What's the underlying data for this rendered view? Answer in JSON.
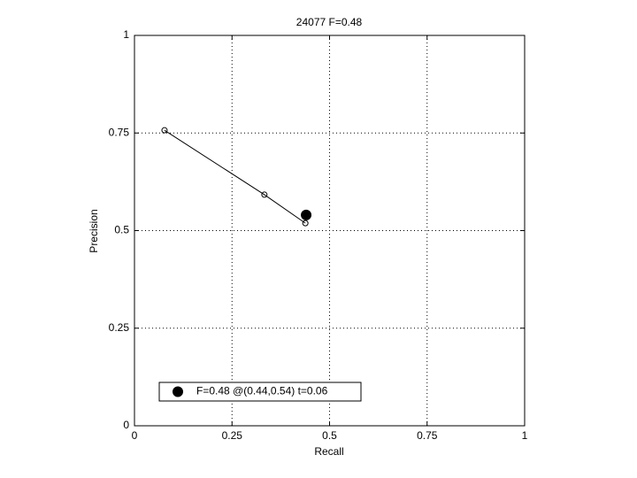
{
  "chart_data": {
    "type": "line",
    "title": "24077 F=0.48",
    "x_label": "Recall",
    "y_label": "Precision",
    "xlim": [
      0,
      1
    ],
    "ylim": [
      0,
      1
    ],
    "xticks": [
      0,
      0.25,
      0.5,
      0.75,
      1
    ],
    "yticks": [
      0,
      0.25,
      0.5,
      0.75,
      1
    ],
    "grid": true,
    "legend": "lower left",
    "series": [
      {
        "color": "#000000",
        "marker": "open-circle",
        "x": [
          0.077,
          0.333,
          0.438
        ],
        "values": [
          0.757,
          0.592,
          0.519
        ]
      },
      {
        "name": "F=0.48 @(0.44,0.54) t=0.06",
        "color": "#000000",
        "marker": "filled-circle",
        "x": [
          0.44
        ],
        "values": [
          0.54
        ]
      }
    ]
  }
}
